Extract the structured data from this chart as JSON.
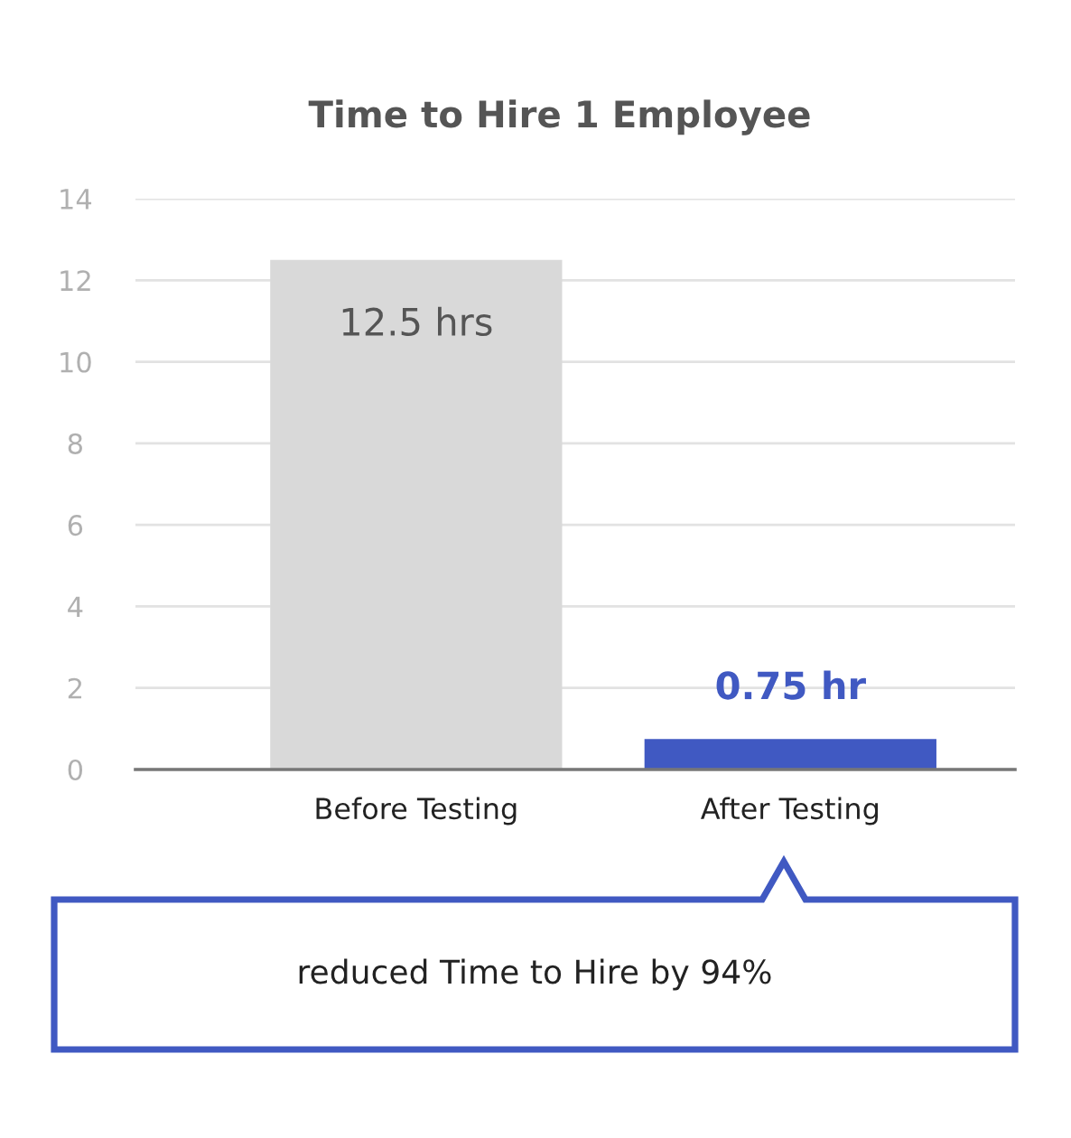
{
  "chart_data": {
    "type": "bar",
    "title": "Time to Hire 1 Employee",
    "categories": [
      "Before Testing",
      "After Testing"
    ],
    "values": [
      12.5,
      0.75
    ],
    "colors": [
      "#d9d9d9",
      "#4059c2"
    ],
    "value_labels": [
      "12.5 hrs",
      "0.75 hr"
    ],
    "ylim": [
      0,
      14
    ],
    "yticks": [
      0,
      2,
      4,
      6,
      8,
      10,
      12,
      14
    ],
    "grid": "y",
    "annotations": [
      "reduced Time to Hire by 94%"
    ]
  }
}
